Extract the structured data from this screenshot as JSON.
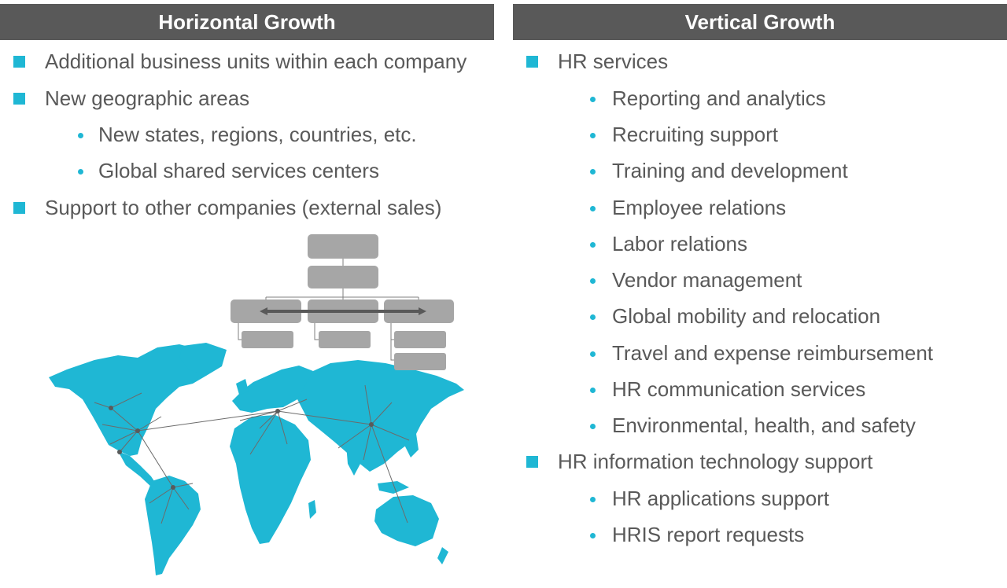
{
  "left": {
    "header": "Horizontal Growth",
    "bullets": [
      "Additional business units within each company",
      "New geographic areas",
      "Support to other companies (external sales)"
    ],
    "sub_bullets": [
      "New states, regions, countries, etc.",
      "Global shared services centers"
    ]
  },
  "right": {
    "header": "Vertical Growth",
    "bullet_hr_services": "HR services",
    "hr_services_items": [
      "Reporting and analytics",
      "Recruiting support",
      "Training and development",
      "Employee relations",
      "Labor relations",
      "Vendor management",
      "Global mobility and relocation",
      "Travel and expense reimbursement",
      "HR communication services",
      "Environmental, health, and safety"
    ],
    "bullet_hr_it": "HR information technology support",
    "hr_it_items": [
      "HR applications support",
      "HRIS report requests"
    ]
  },
  "colors": {
    "accent": "#1fb7d4",
    "header_bg": "#595959",
    "org_box": "#a6a6a6",
    "text": "#595959"
  },
  "illustrations": [
    "org-chart-icon",
    "world-map-icon"
  ]
}
